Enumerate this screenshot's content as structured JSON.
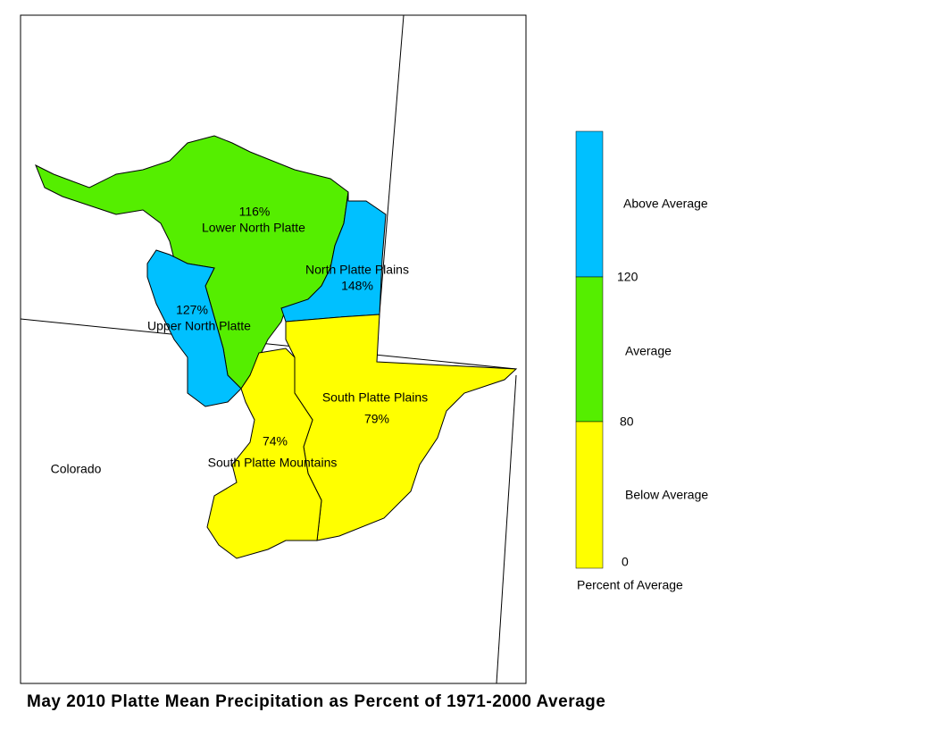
{
  "title": "May 2010 Platte Mean Precipitation as Percent of 1971-2000 Average",
  "state_label": "Colorado",
  "regions": [
    {
      "name": "Lower North Platte",
      "value": "116%"
    },
    {
      "name": "North Platte Plains",
      "value": "148%"
    },
    {
      "name": "Upper North Platte",
      "value": "127%"
    },
    {
      "name": "South Platte Plains",
      "value": "79%"
    },
    {
      "name": "South Platte Mountains",
      "value": "74%"
    }
  ],
  "legend": {
    "classes": [
      "Above Average",
      "Average",
      "Below Average"
    ],
    "breaks": [
      "120",
      "80",
      "0"
    ],
    "caption": "Percent of Average"
  }
}
